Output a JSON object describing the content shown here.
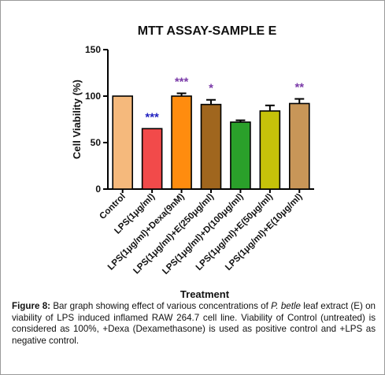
{
  "chart_data": {
    "type": "bar",
    "title": "MTT ASSAY-SAMPLE E",
    "xlabel": "Treatment",
    "ylabel": "Cell Viability (%)",
    "ylim": [
      0,
      150
    ],
    "yticks": [
      "0",
      "50",
      "100",
      "150"
    ],
    "grid": false,
    "categories": [
      "Control",
      "LPS(1μg/ml)",
      "LPS(1μg/ml)+Dexa(9nM)",
      "LPS(1μg/ml)+E(250μg/ml)",
      "LPS(1μg/ml)+D(100μg/ml)",
      "LPS(1μg/ml)+E(50μg/ml)",
      "LPS(1μg/ml)+E(10μg/ml)"
    ],
    "values": [
      100,
      65,
      100,
      91,
      72,
      84,
      92
    ],
    "errors": [
      0,
      0,
      3,
      5,
      2,
      6,
      5
    ],
    "colors": [
      "#f5b97c",
      "#f24a4a",
      "#ff8c0f",
      "#a0661e",
      "#2aa02a",
      "#c6c20a",
      "#c89658"
    ],
    "significance": [
      "",
      "***",
      "***",
      "*",
      "",
      "",
      "**"
    ],
    "significance_colors": [
      "",
      "#1f1fbf",
      "#7a3aa8",
      "#7a3aa8",
      "",
      "",
      "#7a3aa8"
    ]
  },
  "caption": {
    "label": "Figure 8:",
    "part1": " Bar graph showing effect of various concentrations of ",
    "species": "P. betle",
    "part2": " leaf extract (E) on viability of LPS induced inflamed RAW 264.7 cell line. Viability of Control (untreated) is considered as 100%, +Dexa (Dexamethasone) is used as positive control and +LPS as negative control."
  }
}
